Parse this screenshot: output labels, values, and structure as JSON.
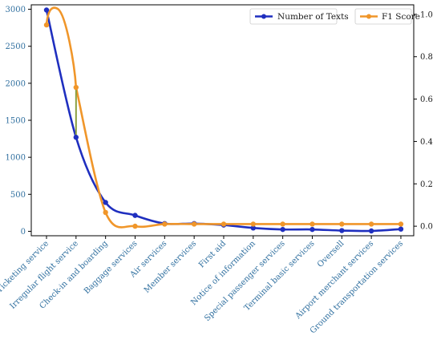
{
  "chart_data": {
    "type": "line",
    "categories": [
      "Ticketing service",
      "Irregular flight service",
      "Check-in and boarding",
      "Baggage services",
      "Air services",
      "Member services",
      "First aid",
      "Notice of information",
      "Special passenger services",
      "Terminal basic services",
      "Oversell",
      "Airport merchant services",
      "Ground transportation services"
    ],
    "series": [
      {
        "name": "Number of Texts",
        "axis": "left",
        "color": "#1f2fbf",
        "values": [
          2990,
          1270,
          390,
          215,
          105,
          105,
          85,
          45,
          25,
          25,
          10,
          5,
          30
        ]
      },
      {
        "name": "F1 Score",
        "axis": "right",
        "color": "#f0962a",
        "values": [
          0.95,
          0.655,
          0.065,
          0.0,
          0.01,
          0.01,
          0.01,
          0.01,
          0.01,
          0.01,
          0.01,
          0.01,
          0.01
        ]
      }
    ],
    "ylim_left": [
      -60,
      3060
    ],
    "ylim_right": [
      -0.045,
      1.045
    ],
    "yticks_left": [
      "0",
      "500",
      "1000",
      "1500",
      "2000",
      "2500",
      "3000"
    ],
    "yticks_right": [
      "0.0",
      "0.2",
      "0.4",
      "0.6",
      "0.8",
      "1.0"
    ],
    "legend": [
      "Number of Texts",
      "F1 Score"
    ],
    "legend_placement": "top-right",
    "grid": false
  }
}
